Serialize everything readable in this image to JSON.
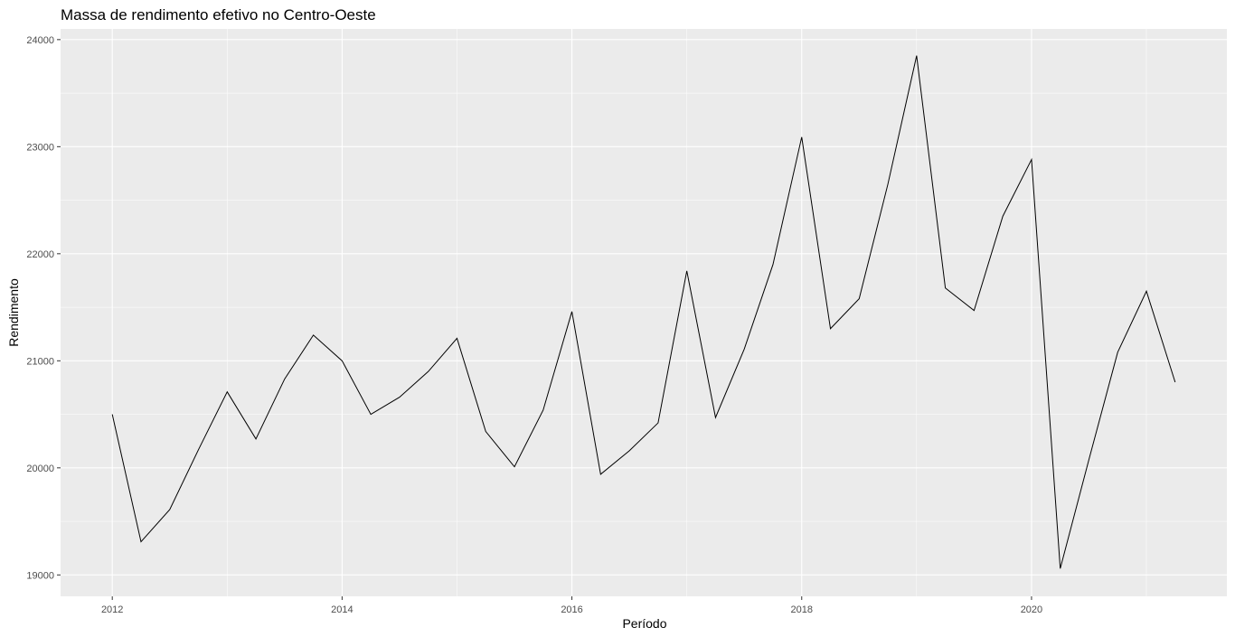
{
  "chart_data": {
    "type": "line",
    "title": "Massa de rendimento efetivo no Centro-Oeste",
    "xlabel": "Período",
    "ylabel": "Rendimento",
    "xlim": [
      2011.55,
      2021.7
    ],
    "ylim": [
      18800,
      24100
    ],
    "x_ticks": [
      2012,
      2014,
      2016,
      2018,
      2020
    ],
    "x_tick_labels": [
      "2012",
      "2014",
      "2016",
      "2018",
      "2020"
    ],
    "y_ticks": [
      19000,
      20000,
      21000,
      22000,
      23000,
      24000
    ],
    "y_tick_labels": [
      "19000",
      "20000",
      "21000",
      "22000",
      "23000",
      "24000"
    ],
    "grid": true,
    "legend": "none",
    "series": [
      {
        "x": [
          2012.0,
          2012.25,
          2012.5,
          2012.75,
          2013.0,
          2013.25,
          2013.5,
          2013.75,
          2014.0,
          2014.25,
          2014.5,
          2014.75,
          2015.0,
          2015.25,
          2015.5,
          2015.75,
          2016.0,
          2016.25,
          2016.5,
          2016.75,
          2017.0,
          2017.25,
          2017.5,
          2017.75,
          2018.0,
          2018.25,
          2018.5,
          2018.75,
          2019.0,
          2019.25,
          2019.5,
          2019.75,
          2020.0,
          2020.25,
          2020.5,
          2020.75,
          2021.0,
          2021.25
        ],
        "values": [
          20500,
          19310,
          19610,
          20170,
          20710,
          20270,
          20830,
          21240,
          21000,
          20500,
          20660,
          20900,
          21210,
          20340,
          20010,
          20540,
          21460,
          19940,
          20160,
          20420,
          21840,
          20470,
          21110,
          21900,
          23090,
          21300,
          21580,
          22650,
          23850,
          21680,
          21470,
          22350,
          22880,
          19060,
          20080,
          21080,
          21650,
          20800
        ],
        "color": "#000000"
      }
    ]
  }
}
